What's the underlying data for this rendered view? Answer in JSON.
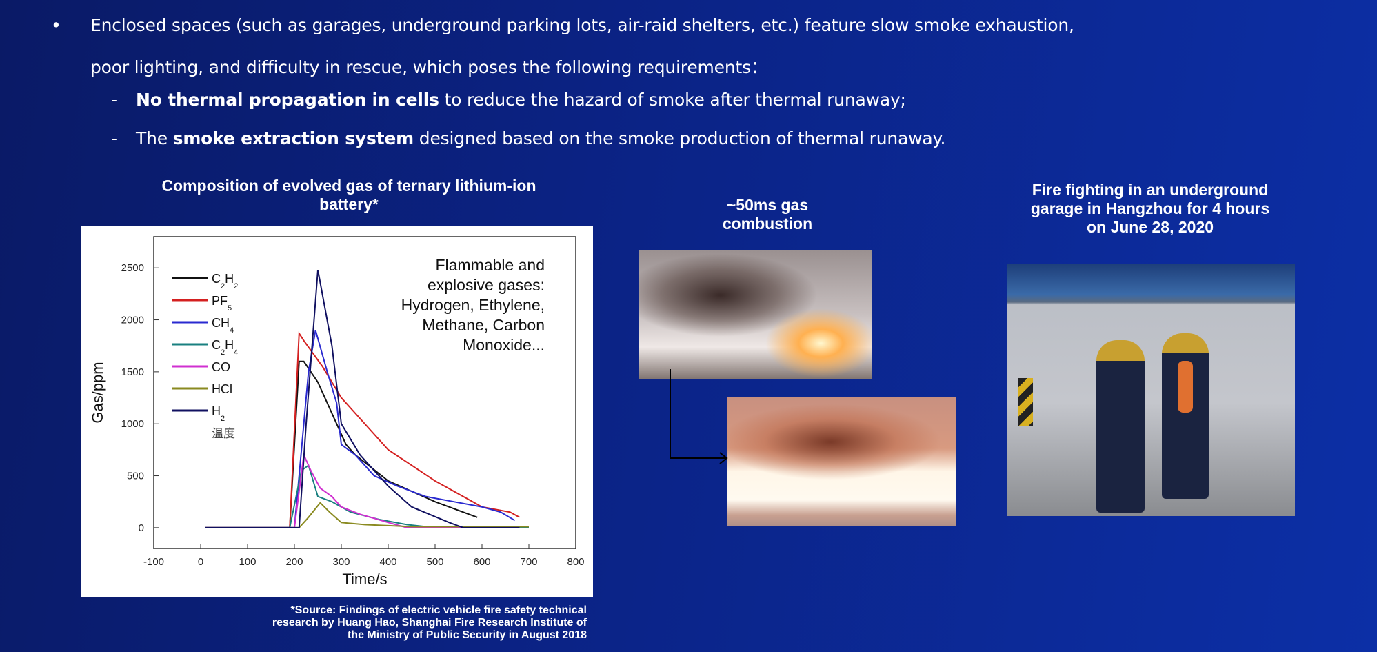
{
  "bullets": {
    "main_line1": "Enclosed spaces (such as garages, underground parking lots, air-raid shelters, etc.) feature slow smoke exhaustion,",
    "main_line2": "poor lighting, and difficulty in rescue, which poses the following requirements：",
    "sub1_bold": "No thermal propagation in cells",
    "sub1_rest": " to reduce the hazard of smoke after thermal runaway;",
    "sub2_pre": "The ",
    "sub2_bold": "smoke extraction system",
    "sub2_rest": " designed based on the smoke production of thermal runaway.",
    "bullet_glyph": "•",
    "dash_glyph": "-"
  },
  "chart_title": "Composition of evolved gas of ternary lithium-ion battery*",
  "source_note": [
    "*Source: Findings of electric vehicle fire safety technical",
    "research by Huang Hao, Shanghai Fire Research Institute of",
    "the Ministry of Public Security in August 2018"
  ],
  "middle": {
    "title": [
      "~50ms gas",
      "combustion"
    ]
  },
  "right": {
    "title": [
      "Fire fighting in an underground",
      "garage in Hangzhou for 4 hours",
      "on June 28, 2020"
    ]
  },
  "chart_data": {
    "type": "line",
    "xlabel": "Time/s",
    "ylabel": "Gas/ppm",
    "xlim": [
      -100,
      800
    ],
    "ylim": [
      -200,
      2800
    ],
    "xticks": [
      -100,
      0,
      100,
      200,
      300,
      400,
      500,
      600,
      700,
      800
    ],
    "yticks": [
      0,
      500,
      1000,
      1500,
      2000,
      2500
    ],
    "grid": false,
    "legend_position": "top-left",
    "legend_extra": "温度",
    "annotation": [
      "Flammable and",
      "explosive gases:",
      "Hydrogen, Ethylene,",
      "Methane, Carbon",
      "Monoxide..."
    ],
    "series": [
      {
        "name": "C2H2",
        "label": "C",
        "sub1": "2",
        "mid": "H",
        "sub2": "2",
        "color": "#111111",
        "x": [
          10,
          190,
          210,
          220,
          250,
          280,
          310,
          330,
          400,
          450,
          500,
          560,
          590
        ],
        "y": [
          0,
          0,
          1600,
          1600,
          1400,
          1100,
          800,
          700,
          450,
          350,
          250,
          150,
          100
        ]
      },
      {
        "name": "PF5",
        "label": "PF",
        "sub1": "5",
        "mid": "",
        "sub2": "",
        "color": "#d42020",
        "x": [
          10,
          190,
          210,
          220,
          260,
          300,
          330,
          370,
          400,
          450,
          500,
          560,
          600,
          660,
          680
        ],
        "y": [
          0,
          0,
          1870,
          1800,
          1550,
          1250,
          1100,
          900,
          750,
          600,
          450,
          300,
          200,
          150,
          100
        ]
      },
      {
        "name": "CH4",
        "label": "CH",
        "sub1": "4",
        "mid": "",
        "sub2": "",
        "color": "#2a2ad0",
        "x": [
          10,
          200,
          230,
          245,
          270,
          290,
          300,
          330,
          370,
          420,
          480,
          540,
          600,
          640,
          670
        ],
        "y": [
          0,
          0,
          1500,
          1900,
          1500,
          1200,
          800,
          700,
          500,
          400,
          300,
          250,
          200,
          150,
          70
        ]
      },
      {
        "name": "C2H4",
        "label": "C",
        "sub1": "2",
        "mid": "H",
        "sub2": "4",
        "color": "#1a8080",
        "x": [
          10,
          190,
          215,
          230,
          250,
          280,
          320,
          380,
          440,
          500,
          700
        ],
        "y": [
          0,
          0,
          550,
          600,
          300,
          250,
          150,
          80,
          30,
          0,
          0
        ]
      },
      {
        "name": "CO",
        "label": "CO",
        "sub1": "",
        "mid": "",
        "sub2": "",
        "color": "#d030d0",
        "x": [
          10,
          200,
          220,
          235,
          255,
          280,
          300,
          340,
          400,
          440,
          560
        ],
        "y": [
          0,
          0,
          700,
          550,
          380,
          300,
          200,
          130,
          50,
          0,
          0
        ]
      },
      {
        "name": "HCl",
        "label": "HCl",
        "sub1": "",
        "mid": "",
        "sub2": "",
        "color": "#8a8a20",
        "x": [
          10,
          210,
          230,
          255,
          275,
          300,
          350,
          450,
          700
        ],
        "y": [
          0,
          0,
          100,
          240,
          150,
          50,
          30,
          10,
          10
        ]
      },
      {
        "name": "H2",
        "label": "H",
        "sub1": "2",
        "mid": "",
        "sub2": "",
        "color": "#101060",
        "x": [
          10,
          210,
          225,
          250,
          280,
          300,
          340,
          400,
          450,
          530,
          560,
          680
        ],
        "y": [
          0,
          0,
          1000,
          2480,
          1750,
          1000,
          700,
          400,
          200,
          50,
          0,
          0
        ]
      }
    ]
  }
}
